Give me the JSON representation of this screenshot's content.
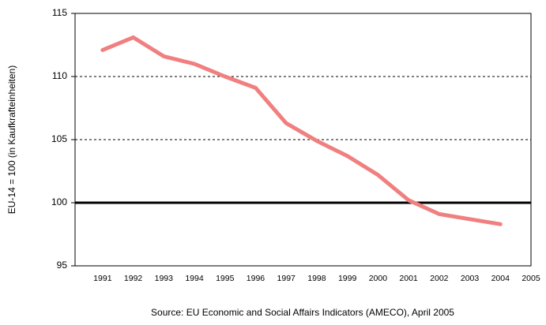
{
  "chart_data": {
    "type": "line",
    "y_label": "EU-14 = 100 (in Kaufkrafteinheiten)",
    "source": "Source: EU Economic and Social Affairs Indicators (AMECO), April 2005",
    "x": [
      1991,
      1992,
      1993,
      1994,
      1995,
      1996,
      1997,
      1998,
      1999,
      2000,
      2001,
      2002,
      2003,
      2004
    ],
    "series": [
      {
        "color": "#f08080",
        "values": [
          112.1,
          113.1,
          111.6,
          111.0,
          110.0,
          109.1,
          106.3,
          104.9,
          103.7,
          102.2,
          100.2,
          99.1,
          98.7,
          98.3
        ]
      }
    ],
    "xlim": [
      1990.1,
      2005
    ],
    "xticks": [
      1991,
      1992,
      1993,
      1994,
      1995,
      1996,
      1997,
      1998,
      1999,
      2000,
      2001,
      2002,
      2003,
      2004,
      2005
    ],
    "ylim": [
      95,
      115
    ],
    "yticks": [
      95,
      100,
      105,
      110,
      115
    ],
    "reference_line": 100,
    "grid": "dashed"
  }
}
